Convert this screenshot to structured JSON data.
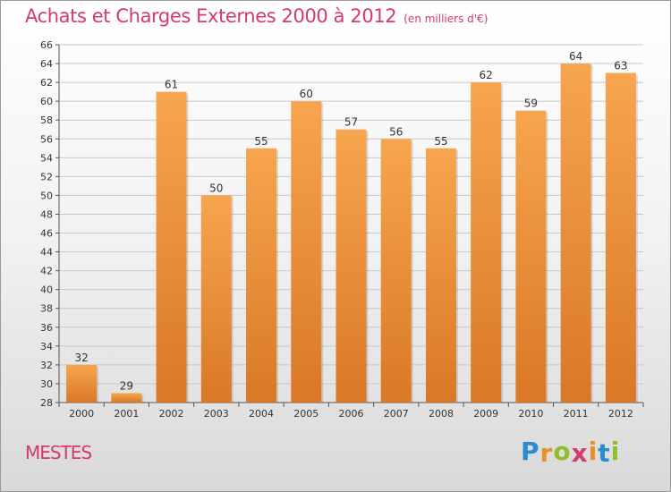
{
  "header": {
    "title": "Achats et Charges Externes 2000 à 2012",
    "subtitle": "(en milliers d'€)"
  },
  "footer": {
    "town": "MESTES",
    "logo_letters": [
      "P",
      "r",
      "o",
      "x",
      "i",
      "t",
      "i"
    ],
    "logo_colors": [
      "#2a8bd0",
      "#e8902a",
      "#8fbf2a",
      "#d43a6e",
      "#e8902a",
      "#2a8bd0",
      "#8fbf2a"
    ]
  },
  "colors": {
    "title": "#d43a6e",
    "bar_light": "#f7a54e",
    "bar_dark": "#d97826",
    "grid": "#c8c8c8"
  },
  "chart_data": {
    "type": "bar",
    "categories": [
      "2000",
      "2001",
      "2002",
      "2003",
      "2004",
      "2005",
      "2006",
      "2007",
      "2008",
      "2009",
      "2010",
      "2011",
      "2012"
    ],
    "values": [
      32,
      29,
      61,
      50,
      55,
      60,
      57,
      56,
      55,
      62,
      59,
      64,
      63
    ],
    "title": "Achats et Charges Externes 2000 à 2012",
    "ylim": [
      28,
      66
    ],
    "yticks": [
      28,
      30,
      32,
      34,
      36,
      38,
      40,
      42,
      44,
      46,
      48,
      50,
      52,
      54,
      56,
      58,
      60,
      62,
      64,
      66
    ],
    "grid": true,
    "data_labels": true
  }
}
